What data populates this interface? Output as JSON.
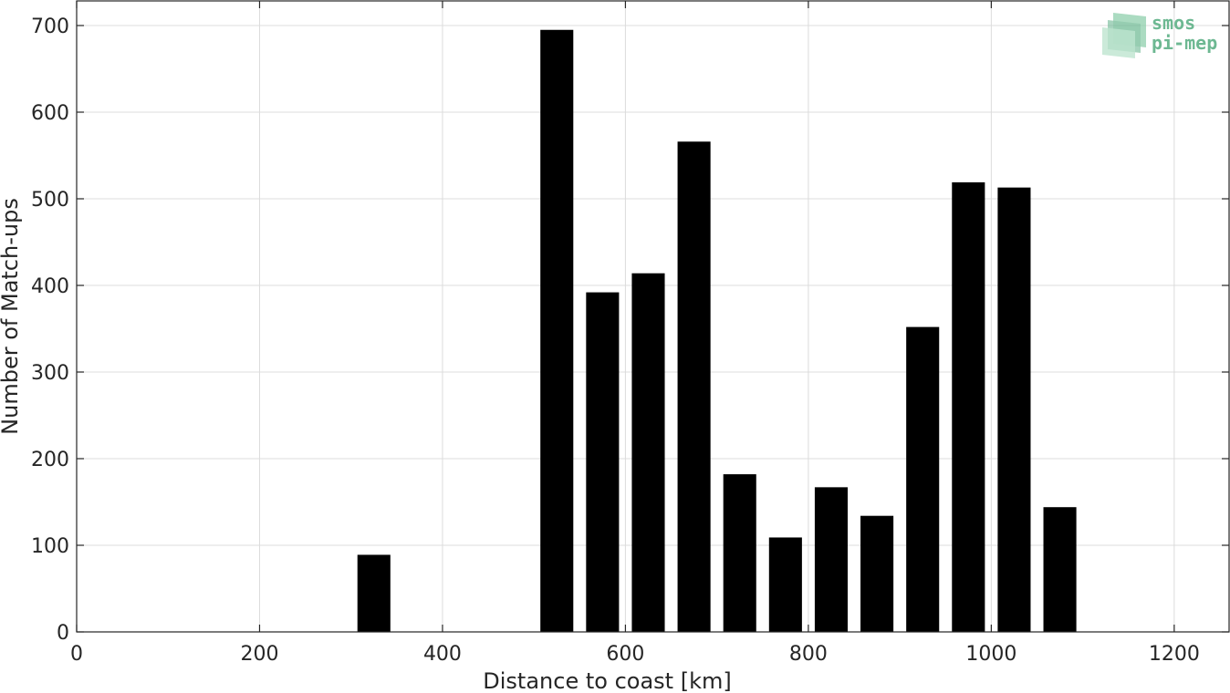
{
  "chart_data": {
    "type": "bar",
    "title": "",
    "xlabel": "Distance to coast [km]",
    "ylabel": "Number of Match-ups",
    "xlim": [
      0,
      1260
    ],
    "ylim": [
      0,
      700
    ],
    "xticks": [
      0,
      200,
      400,
      600,
      800,
      1000,
      1200
    ],
    "yticks": [
      0,
      100,
      200,
      300,
      400,
      500,
      600,
      700
    ],
    "bar_width": 36,
    "bar_color": "#000000",
    "grid": true,
    "x": [
      325,
      525,
      575,
      625,
      675,
      725,
      775,
      825,
      875,
      925,
      975,
      1025,
      1075
    ],
    "values": [
      89,
      695,
      392,
      414,
      566,
      182,
      109,
      167,
      134,
      352,
      519,
      513,
      144
    ]
  },
  "logo": {
    "line1": "smos",
    "line2": "pi-mep"
  }
}
